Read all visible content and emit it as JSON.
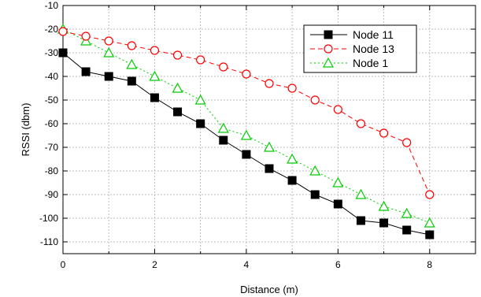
{
  "chart_data": {
    "type": "line",
    "title": "",
    "xlabel": "Distance (m)",
    "ylabel": "RSSI (dbm)",
    "xlim": [
      0,
      9
    ],
    "ylim": [
      -115,
      -10
    ],
    "xticks": [
      0,
      2,
      4,
      6,
      8
    ],
    "yticks": [
      -10,
      -20,
      -30,
      -40,
      -50,
      -60,
      -70,
      -80,
      -90,
      -100,
      -110
    ],
    "x_minor_step": 1,
    "grid": true,
    "legend_position": "top-right",
    "series": [
      {
        "name": "Node 11",
        "color": "#000000",
        "line_style": "solid",
        "marker": "filled-square",
        "x": [
          0,
          0.5,
          1,
          1.5,
          2,
          2.5,
          3,
          3.5,
          4,
          4.5,
          5,
          5.5,
          6,
          6.5,
          7,
          7.5,
          8
        ],
        "y": [
          -30,
          -38,
          -40,
          -42,
          -49,
          -55,
          -60,
          -67,
          -73,
          -79,
          -84,
          -90,
          -94,
          -101,
          -102,
          -105,
          -107
        ]
      },
      {
        "name": "Node 13",
        "color": "#ff0000",
        "line_style": "dashed",
        "marker": "open-circle",
        "x": [
          0,
          0.5,
          1,
          1.5,
          2,
          2.5,
          3,
          3.5,
          4,
          4.5,
          5,
          5.5,
          6,
          6.5,
          7,
          7.5,
          8
        ],
        "y": [
          -21,
          -23,
          -25,
          -27,
          -29,
          -31,
          -33,
          -36,
          -39,
          -43,
          -45,
          -50,
          -54,
          -60,
          -64,
          -68,
          -90
        ]
      },
      {
        "name": "Node 1",
        "color": "#00cc00",
        "line_style": "dotted",
        "marker": "open-triangle",
        "x": [
          0,
          0.5,
          1,
          1.5,
          2,
          2.5,
          3,
          3.5,
          4,
          4.5,
          5,
          5.5,
          6,
          6.5,
          7,
          7.5,
          8
        ],
        "y": [
          -20,
          -25,
          -30,
          -35,
          -40,
          -45,
          -50,
          -62,
          -65,
          -70,
          -75,
          -80,
          -85,
          -90,
          -95,
          -98,
          -102
        ]
      }
    ]
  }
}
